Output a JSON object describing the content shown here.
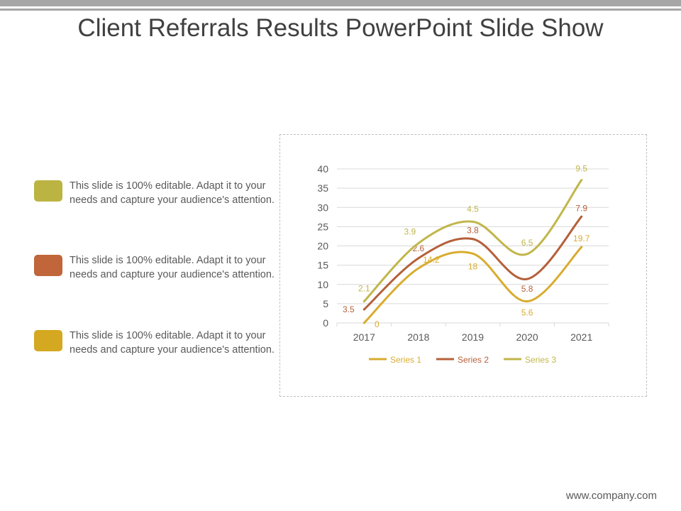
{
  "slide": {
    "title": "Client Referrals Results PowerPoint Slide Show",
    "footer_url": "www.company.com"
  },
  "legend_items": [
    {
      "text": "This slide is 100% editable. Adapt it to your needs and capture your audience's attention.",
      "color": "#bbb443"
    },
    {
      "text": "This slide is 100% editable. Adapt it to your needs and capture your audience's attention.",
      "color": "#c0663a"
    },
    {
      "text": "This slide is 100% editable. Adapt it to your needs and capture your audience's attention.",
      "color": "#d4a820"
    }
  ],
  "chart_data": {
    "type": "line",
    "stacked": true,
    "categories": [
      "2017",
      "2018",
      "2019",
      "2020",
      "2021"
    ],
    "series": [
      {
        "name": "Series 1",
        "color": "#d9ac2f",
        "labels": [
          "0",
          "14.2",
          "18",
          "5.6",
          "19.7"
        ],
        "values": [
          0,
          14.2,
          18,
          5.6,
          19.7
        ],
        "cumulative": [
          0,
          14.2,
          18,
          5.6,
          19.7
        ]
      },
      {
        "name": "Series 2",
        "color": "#b5603a",
        "labels": [
          "3.5",
          "2.6",
          "3.8",
          "5.8",
          "7.9"
        ],
        "values": [
          3.5,
          2.6,
          3.8,
          5.8,
          7.9
        ],
        "cumulative": [
          3.5,
          16.8,
          21.8,
          11.4,
          27.6
        ]
      },
      {
        "name": "Series 3",
        "color": "#c1b64a",
        "labels": [
          "2.1",
          "3.9",
          "4.5",
          "6.5",
          "9.5"
        ],
        "values": [
          2.1,
          3.9,
          4.5,
          6.5,
          9.5
        ],
        "cumulative": [
          5.6,
          20.7,
          26.3,
          17.9,
          37.1
        ]
      }
    ],
    "yticks": [
      "0",
      "5",
      "10",
      "15",
      "20",
      "25",
      "30",
      "35",
      "40"
    ],
    "ylim": [
      0,
      40
    ],
    "grid": "horizontal",
    "legend_position": "bottom",
    "smooth": true
  }
}
